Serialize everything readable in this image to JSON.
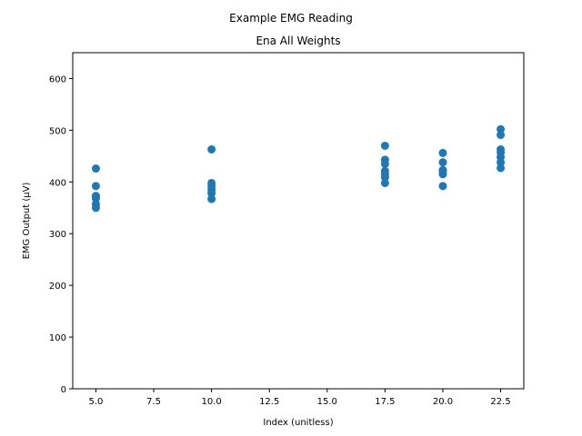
{
  "chart_data": {
    "type": "scatter",
    "title": "Example EMG Reading",
    "subtitle": "Ena All Weights",
    "xlabel": "Index (unitless)",
    "ylabel": "EMG Output (μV)",
    "xlim": [
      4,
      23.5
    ],
    "ylim": [
      0,
      650
    ],
    "xticks": [
      5.0,
      7.5,
      10.0,
      12.5,
      15.0,
      17.5,
      20.0,
      22.5
    ],
    "xtick_labels": [
      "5.0",
      "7.5",
      "10.0",
      "12.5",
      "15.0",
      "17.5",
      "20.0",
      "22.5"
    ],
    "yticks": [
      0,
      100,
      200,
      300,
      400,
      500,
      600
    ],
    "ytick_labels": [
      "0",
      "100",
      "200",
      "300",
      "400",
      "500",
      "600"
    ],
    "grid": false,
    "color": "#1f77b4",
    "points": [
      {
        "x": 5.0,
        "y": 426
      },
      {
        "x": 5.0,
        "y": 392
      },
      {
        "x": 5.0,
        "y": 373
      },
      {
        "x": 5.0,
        "y": 368
      },
      {
        "x": 5.0,
        "y": 357
      },
      {
        "x": 5.0,
        "y": 350
      },
      {
        "x": 10.0,
        "y": 463
      },
      {
        "x": 10.0,
        "y": 398
      },
      {
        "x": 10.0,
        "y": 392
      },
      {
        "x": 10.0,
        "y": 385
      },
      {
        "x": 10.0,
        "y": 378
      },
      {
        "x": 10.0,
        "y": 367
      },
      {
        "x": 17.5,
        "y": 470
      },
      {
        "x": 17.5,
        "y": 443
      },
      {
        "x": 17.5,
        "y": 435
      },
      {
        "x": 17.5,
        "y": 421
      },
      {
        "x": 17.5,
        "y": 415
      },
      {
        "x": 17.5,
        "y": 409
      },
      {
        "x": 17.5,
        "y": 398
      },
      {
        "x": 20.0,
        "y": 456
      },
      {
        "x": 20.0,
        "y": 438
      },
      {
        "x": 20.0,
        "y": 423
      },
      {
        "x": 20.0,
        "y": 420
      },
      {
        "x": 20.0,
        "y": 415
      },
      {
        "x": 20.0,
        "y": 392
      },
      {
        "x": 22.5,
        "y": 502
      },
      {
        "x": 22.5,
        "y": 491
      },
      {
        "x": 22.5,
        "y": 463
      },
      {
        "x": 22.5,
        "y": 457
      },
      {
        "x": 22.5,
        "y": 448
      },
      {
        "x": 22.5,
        "y": 438
      },
      {
        "x": 22.5,
        "y": 427
      }
    ]
  }
}
